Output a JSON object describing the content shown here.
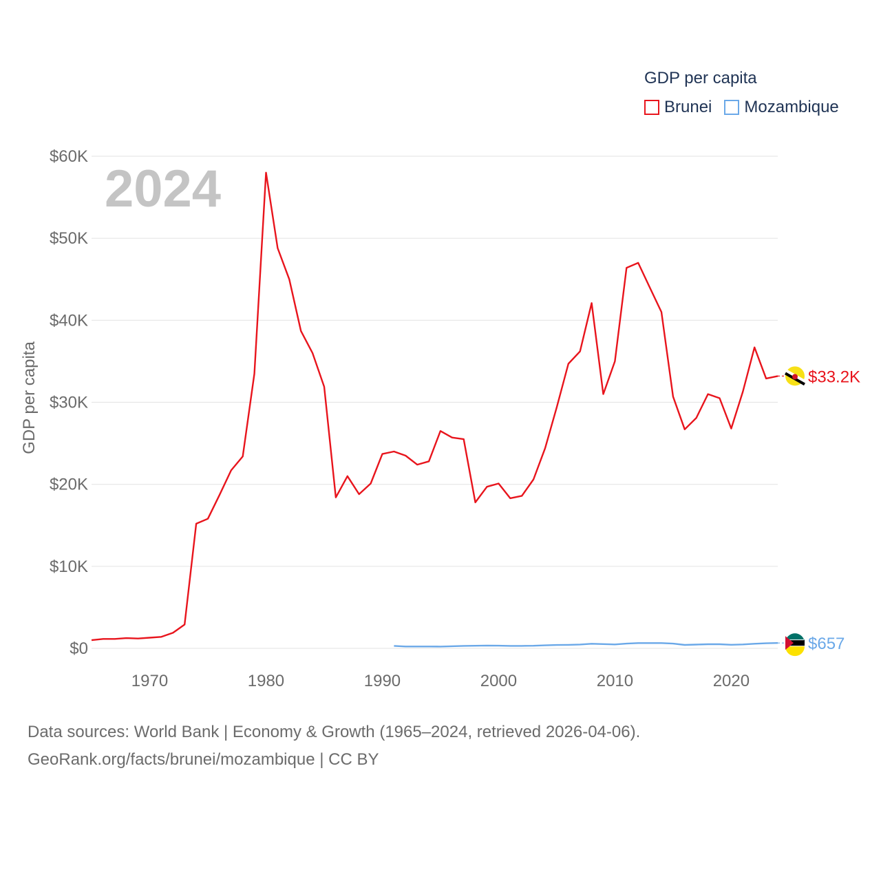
{
  "chart_data": {
    "type": "line",
    "year_label": "2024",
    "ylabel": "GDP per capita",
    "xlabel": "",
    "xlim": [
      1965,
      2024
    ],
    "ylim": [
      0,
      60000
    ],
    "x_ticks": [
      1970,
      1980,
      1990,
      2000,
      2010,
      2020
    ],
    "x_tick_labels": [
      "1970",
      "1980",
      "1990",
      "2000",
      "2010",
      "2020"
    ],
    "y_ticks": [
      0,
      10000,
      20000,
      30000,
      40000,
      50000,
      60000
    ],
    "y_tick_labels": [
      "$0",
      "$10K",
      "$20K",
      "$30K",
      "$40K",
      "$50K",
      "$60K"
    ],
    "grid": true,
    "legend": {
      "title": "GDP per capita",
      "position": "top-right",
      "items": [
        "Brunei",
        "Mozambique"
      ]
    },
    "series": [
      {
        "name": "Brunei",
        "color": "#e8141c",
        "end_label": "$33.2K",
        "flag_icon": "brunei-flag-icon",
        "x": [
          1965,
          1966,
          1967,
          1968,
          1969,
          1970,
          1971,
          1972,
          1973,
          1974,
          1975,
          1976,
          1977,
          1978,
          1979,
          1980,
          1981,
          1982,
          1983,
          1984,
          1985,
          1986,
          1987,
          1988,
          1989,
          1990,
          1991,
          1992,
          1993,
          1994,
          1995,
          1996,
          1997,
          1998,
          1999,
          2000,
          2001,
          2002,
          2003,
          2004,
          2005,
          2006,
          2007,
          2008,
          2009,
          2010,
          2011,
          2012,
          2013,
          2014,
          2015,
          2016,
          2017,
          2018,
          2019,
          2020,
          2021,
          2022,
          2023,
          2024
        ],
        "values": [
          1000,
          1150,
          1150,
          1250,
          1200,
          1300,
          1400,
          1900,
          2900,
          15200,
          15800,
          18700,
          21700,
          23400,
          33500,
          58000,
          48800,
          45000,
          38700,
          36000,
          31900,
          18400,
          21000,
          18800,
          20100,
          23700,
          24000,
          23500,
          22400,
          22800,
          26500,
          25700,
          25500,
          17800,
          19700,
          20100,
          18300,
          18600,
          20600,
          24400,
          29400,
          34700,
          36200,
          42100,
          31000,
          35000,
          46400,
          47000,
          44000,
          41000,
          30700,
          26700,
          28100,
          31000,
          30500,
          26800,
          31300,
          36700,
          32900,
          33200
        ]
      },
      {
        "name": "Mozambique",
        "color": "#6aa8e8",
        "end_label": "$657",
        "flag_icon": "mozambique-flag-icon",
        "x": [
          1991,
          1992,
          1993,
          1994,
          1995,
          1996,
          1997,
          1998,
          1999,
          2000,
          2001,
          2002,
          2003,
          2004,
          2005,
          2006,
          2007,
          2008,
          2009,
          2010,
          2011,
          2012,
          2013,
          2014,
          2015,
          2016,
          2017,
          2018,
          2019,
          2020,
          2021,
          2022,
          2023,
          2024
        ],
        "values": [
          300,
          230,
          230,
          230,
          220,
          260,
          300,
          320,
          340,
          330,
          300,
          300,
          320,
          370,
          410,
          430,
          470,
          560,
          520,
          480,
          580,
          650,
          650,
          650,
          580,
          420,
          460,
          500,
          500,
          440,
          480,
          560,
          620,
          657
        ]
      }
    ]
  },
  "footer": {
    "line1": "Data sources: World Bank | Economy & Growth (1965–2024, retrieved 2026-04-06).",
    "line2": "GeoRank.org/facts/brunei/mozambique | CC BY"
  }
}
